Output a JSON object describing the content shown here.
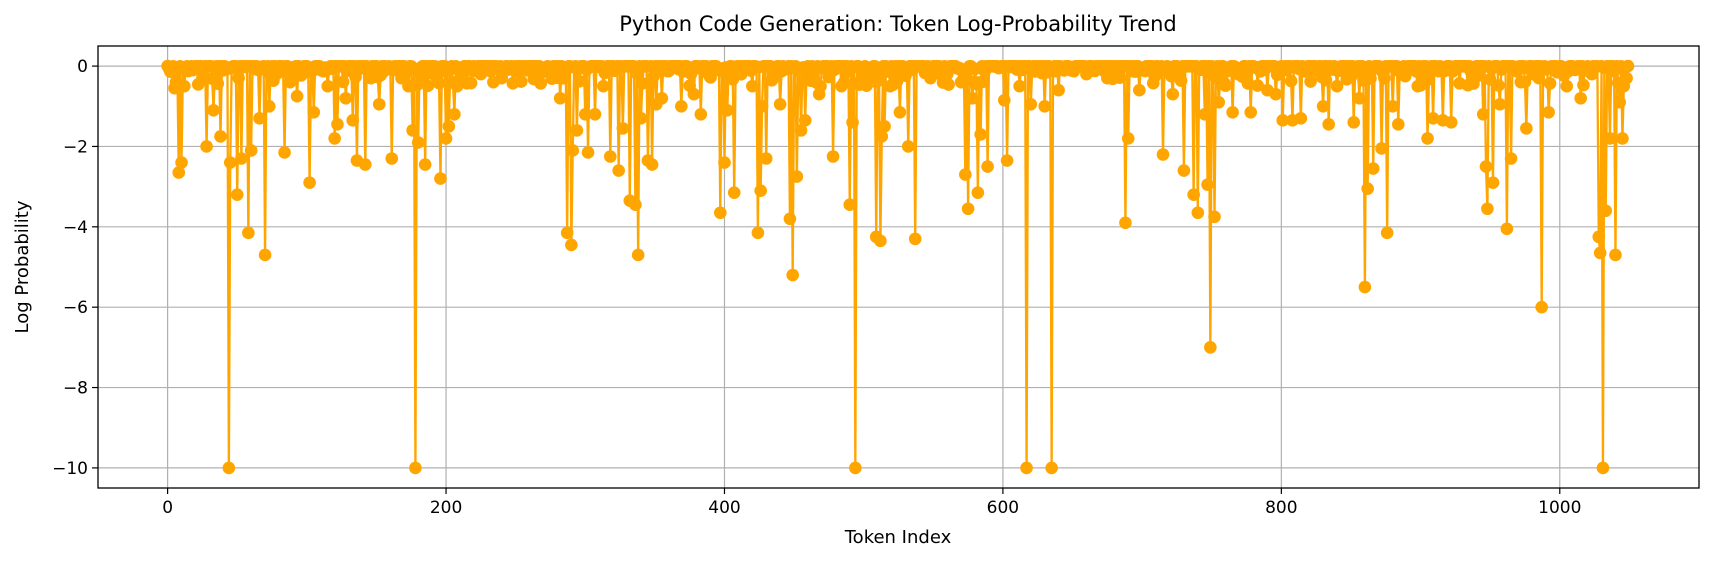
{
  "chart_data": {
    "type": "line",
    "title": "Python Code Generation: Token Log-Probability Trend",
    "xlabel": "Token Index",
    "ylabel": "Log Probability",
    "xlim": [
      -50,
      1100
    ],
    "ylim": [
      -10.5,
      0.5
    ],
    "xticks": [
      0,
      200,
      400,
      600,
      800,
      1000
    ],
    "yticks": [
      0,
      -2,
      -4,
      -6,
      -8,
      -10
    ],
    "xtick_labels": [
      "0",
      "200",
      "400",
      "600",
      "800",
      "1000"
    ],
    "ytick_labels": [
      "0",
      "−2",
      "−4",
      "−6",
      "−8",
      "−10"
    ],
    "grid": true,
    "marker": "circle",
    "color": "#ffa500",
    "series": [
      {
        "dips": [
          [
            0,
            0
          ],
          [
            5,
            -0.55
          ],
          [
            8,
            -2.65
          ],
          [
            10,
            -2.4
          ],
          [
            12,
            -0.5
          ],
          [
            18,
            -0.1
          ],
          [
            25,
            -0.3
          ],
          [
            28,
            -2.0
          ],
          [
            33,
            -1.1
          ],
          [
            38,
            -1.75
          ],
          [
            44,
            -10.0
          ],
          [
            45,
            -2.4
          ],
          [
            50,
            -3.2
          ],
          [
            53,
            -2.3
          ],
          [
            58,
            -4.15
          ],
          [
            60,
            -2.1
          ],
          [
            66,
            -1.3
          ],
          [
            70,
            -4.7
          ],
          [
            73,
            -1.0
          ],
          [
            78,
            -0.2
          ],
          [
            84,
            -2.15
          ],
          [
            88,
            -0.4
          ],
          [
            93,
            -0.75
          ],
          [
            102,
            -2.9
          ],
          [
            105,
            -1.15
          ],
          [
            115,
            -0.5
          ],
          [
            120,
            -1.8
          ],
          [
            122,
            -1.45
          ],
          [
            128,
            -0.8
          ],
          [
            133,
            -1.35
          ],
          [
            136,
            -2.35
          ],
          [
            142,
            -2.45
          ],
          [
            146,
            -0.3
          ],
          [
            152,
            -0.95
          ],
          [
            161,
            -2.3
          ],
          [
            168,
            -0.3
          ],
          [
            173,
            -0.5
          ],
          [
            176,
            -1.6
          ],
          [
            178,
            -10.0
          ],
          [
            180,
            -1.9
          ],
          [
            185,
            -2.45
          ],
          [
            191,
            -0.2
          ],
          [
            196,
            -2.8
          ],
          [
            200,
            -1.8
          ],
          [
            202,
            -1.5
          ],
          [
            206,
            -1.2
          ],
          [
            208,
            -0.5
          ],
          [
            225,
            -0.2
          ],
          [
            234,
            -0.4
          ],
          [
            240,
            -0.3
          ],
          [
            265,
            -0.15
          ],
          [
            282,
            -0.8
          ],
          [
            287,
            -4.15
          ],
          [
            290,
            -4.45
          ],
          [
            291,
            -2.1
          ],
          [
            294,
            -1.6
          ],
          [
            300,
            -1.2
          ],
          [
            302,
            -2.15
          ],
          [
            307,
            -1.2
          ],
          [
            313,
            -0.5
          ],
          [
            318,
            -2.25
          ],
          [
            324,
            -2.6
          ],
          [
            327,
            -1.55
          ],
          [
            332,
            -3.35
          ],
          [
            336,
            -3.45
          ],
          [
            338,
            -4.7
          ],
          [
            340,
            -1.3
          ],
          [
            345,
            -2.35
          ],
          [
            348,
            -2.45
          ],
          [
            351,
            -0.95
          ],
          [
            355,
            -0.8
          ],
          [
            369,
            -1.0
          ],
          [
            378,
            -0.7
          ],
          [
            383,
            -1.2
          ],
          [
            397,
            -3.65
          ],
          [
            400,
            -2.4
          ],
          [
            402,
            -1.1
          ],
          [
            407,
            -3.15
          ],
          [
            420,
            -0.5
          ],
          [
            424,
            -4.15
          ],
          [
            426,
            -3.1
          ],
          [
            427,
            -1.0
          ],
          [
            430,
            -2.3
          ],
          [
            440,
            -0.95
          ],
          [
            447,
            -3.8
          ],
          [
            449,
            -5.2
          ],
          [
            452,
            -2.75
          ],
          [
            455,
            -1.6
          ],
          [
            458,
            -1.35
          ],
          [
            468,
            -0.7
          ],
          [
            478,
            -2.25
          ],
          [
            484,
            -0.5
          ],
          [
            490,
            -3.45
          ],
          [
            492,
            -1.4
          ],
          [
            494,
            -10.0
          ],
          [
            498,
            -0.35
          ],
          [
            509,
            -4.25
          ],
          [
            512,
            -4.35
          ],
          [
            513,
            -1.75
          ],
          [
            515,
            -1.5
          ],
          [
            519,
            -0.5
          ],
          [
            526,
            -1.15
          ],
          [
            532,
            -2.0
          ],
          [
            537,
            -4.3
          ],
          [
            548,
            -0.3
          ],
          [
            560,
            -0.2
          ],
          [
            570,
            -0.4
          ],
          [
            573,
            -2.7
          ],
          [
            575,
            -3.55
          ],
          [
            578,
            -0.8
          ],
          [
            582,
            -3.15
          ],
          [
            584,
            -1.7
          ],
          [
            589,
            -2.5
          ],
          [
            601,
            -0.85
          ],
          [
            603,
            -2.35
          ],
          [
            612,
            -0.5
          ],
          [
            617,
            -10.0
          ],
          [
            620,
            -0.95
          ],
          [
            630,
            -1.0
          ],
          [
            635,
            -10.0
          ],
          [
            640,
            -0.6
          ],
          [
            660,
            -0.2
          ],
          [
            675,
            -0.3
          ],
          [
            688,
            -3.9
          ],
          [
            690,
            -1.8
          ],
          [
            698,
            -0.6
          ],
          [
            715,
            -2.2
          ],
          [
            722,
            -0.7
          ],
          [
            730,
            -2.6
          ],
          [
            737,
            -3.2
          ],
          [
            740,
            -3.65
          ],
          [
            745,
            -1.2
          ],
          [
            747,
            -2.95
          ],
          [
            749,
            -7.0
          ],
          [
            752,
            -3.75
          ],
          [
            755,
            -0.9
          ],
          [
            765,
            -1.15
          ],
          [
            778,
            -1.15
          ],
          [
            790,
            -0.6
          ],
          [
            796,
            -0.7
          ],
          [
            801,
            -1.35
          ],
          [
            808,
            -1.35
          ],
          [
            814,
            -1.3
          ],
          [
            830,
            -1.0
          ],
          [
            834,
            -1.45
          ],
          [
            840,
            -0.5
          ],
          [
            852,
            -1.4
          ],
          [
            856,
            -0.8
          ],
          [
            860,
            -5.5
          ],
          [
            862,
            -3.05
          ],
          [
            866,
            -2.55
          ],
          [
            872,
            -2.05
          ],
          [
            876,
            -4.15
          ],
          [
            880,
            -1.0
          ],
          [
            884,
            -1.45
          ],
          [
            898,
            -0.5
          ],
          [
            905,
            -1.8
          ],
          [
            909,
            -1.3
          ],
          [
            916,
            -1.35
          ],
          [
            922,
            -1.4
          ],
          [
            945,
            -1.2
          ],
          [
            947,
            -2.5
          ],
          [
            948,
            -3.55
          ],
          [
            952,
            -2.9
          ],
          [
            957,
            -0.95
          ],
          [
            962,
            -4.05
          ],
          [
            965,
            -2.3
          ],
          [
            972,
            -0.4
          ],
          [
            976,
            -1.55
          ],
          [
            985,
            -0.3
          ],
          [
            987,
            -6.0
          ],
          [
            992,
            -1.15
          ],
          [
            1005,
            -0.5
          ],
          [
            1015,
            -0.8
          ],
          [
            1023,
            -0.2
          ],
          [
            1028,
            -4.25
          ],
          [
            1029,
            -4.65
          ],
          [
            1031,
            -10.0
          ],
          [
            1033,
            -3.6
          ],
          [
            1036,
            -1.8
          ],
          [
            1040,
            -4.7
          ],
          [
            1043,
            -0.9
          ],
          [
            1045,
            -1.8
          ],
          [
            1046,
            -0.5
          ],
          [
            1048,
            -0.3
          ],
          [
            1049,
            0
          ]
        ]
      }
    ]
  }
}
